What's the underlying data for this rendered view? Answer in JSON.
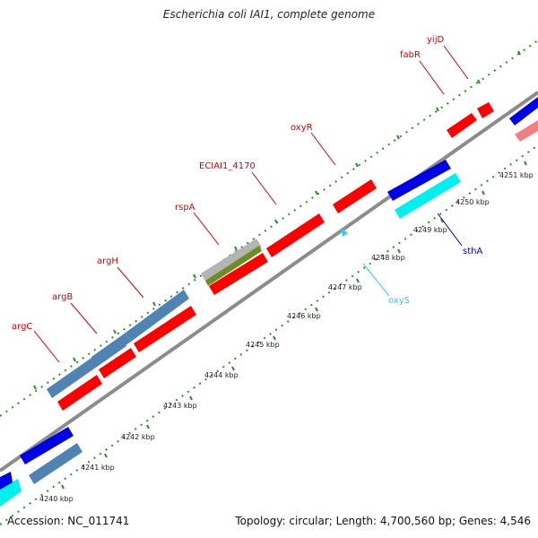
{
  "title": "Escherichia coli IAI1, complete genome",
  "footer": {
    "accession": "Accession: NC_011741",
    "summary": "Topology: circular; Length: 4,700,560 bp; Genes: 4,546"
  },
  "colors": {
    "backbone": "#8c8c8c",
    "tick": "#2e8b2e",
    "gene_red": "#ff0000",
    "gene_steel": "#4f83b3",
    "gene_blue": "#0000e6",
    "gene_cyan": "#00f0f0",
    "gene_pink": "#f28080",
    "gene_grey": "#b4b4b4",
    "gene_olive": "#6b8e23",
    "label_red": "#d40000",
    "label_blue": "#0000cc",
    "label_cyan": "#33ccee"
  },
  "scale_labels": [
    "4240 kbp",
    "4241 kbp",
    "4242 kbp",
    "4243 kbp",
    "4244 kbp",
    "4245 kbp",
    "4246 kbp",
    "4247 kbp",
    "4248 kbp",
    "4249 kbp",
    "4250 kbp",
    "4251 kbp"
  ],
  "gene_labels": {
    "argC": "argC",
    "argB": "argB",
    "argH": "argH",
    "rspA": "rspA",
    "ECIAI1_4170": "ECIAI1_4170",
    "oxyR": "oxyR",
    "fabR": "fabR",
    "yijD": "yijD",
    "sthA": "sthA",
    "oxyS": "oxyS"
  }
}
